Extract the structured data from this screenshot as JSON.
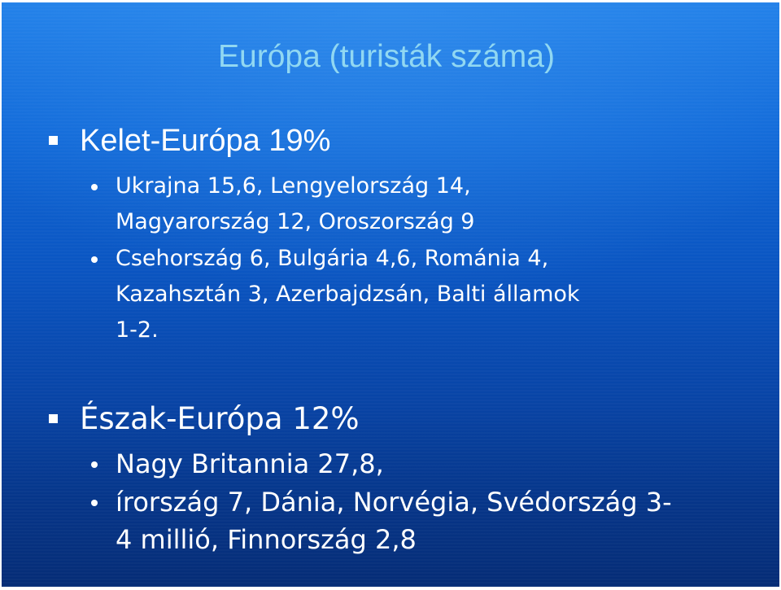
{
  "slide": {
    "title": "Európa (turisták száma)",
    "colors": {
      "background_top": "#1f7ee8",
      "background_bottom": "#052c76",
      "title": "#8fd7f2",
      "text": "#ffffff"
    },
    "sections": [
      {
        "heading": "Kelet-Európa 19%",
        "items": [
          "Ukrajna 15,6, Lengyelország 14,\nMagyarország 12,  Oroszország 9",
          "Csehország 6, Bulgária 4,6, Románia 4,\nKazahsztán 3, Azerbajdzsán, Balti államok\n1-2."
        ]
      },
      {
        "heading": "Észak-Európa 12%",
        "items": [
          "Nagy Britannia 27,8,",
          "írország 7, Dánia, Norvégia, Svédország 3-\n4 millió, Finnország 2,8"
        ]
      }
    ]
  }
}
